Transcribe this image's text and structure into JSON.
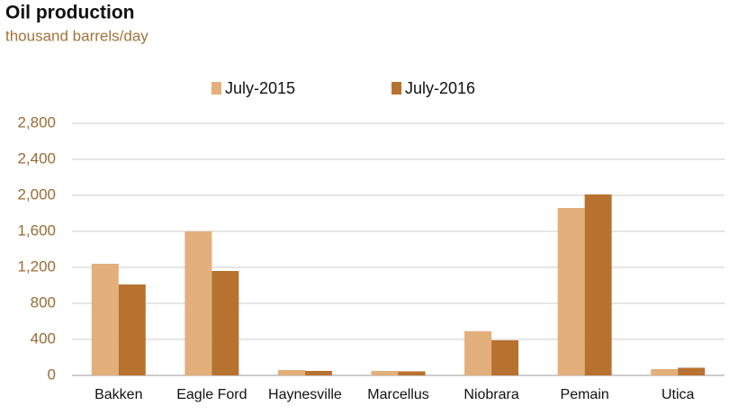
{
  "chart_data": {
    "type": "bar",
    "title": "Oil production",
    "subtitle": "thousand barrels/day",
    "categories": [
      "Bakken",
      "Eagle Ford",
      "Haynesville",
      "Marcellus",
      "Niobrara",
      "Pemain",
      "Utica"
    ],
    "series": [
      {
        "name": "July-2015",
        "color": "#e3af7b",
        "values": [
          1240,
          1600,
          60,
          50,
          490,
          1860,
          70
        ]
      },
      {
        "name": "July-2016",
        "color": "#b8722f",
        "values": [
          1010,
          1160,
          50,
          45,
          390,
          2010,
          85
        ]
      }
    ],
    "ylim": [
      0,
      2800
    ],
    "yticks": [
      0,
      {
        "value": 400,
        "label": "400"
      },
      {
        "value": 800,
        "label": "800"
      },
      {
        "value": 1200,
        "label": "1,200"
      },
      {
        "value": 1600,
        "label": "1,600"
      },
      {
        "value": 2000,
        "label": "2,000"
      },
      {
        "value": 2400,
        "label": "2,400"
      },
      {
        "value": 2800,
        "label": "2,800"
      }
    ],
    "grid": true,
    "legend": "top"
  }
}
